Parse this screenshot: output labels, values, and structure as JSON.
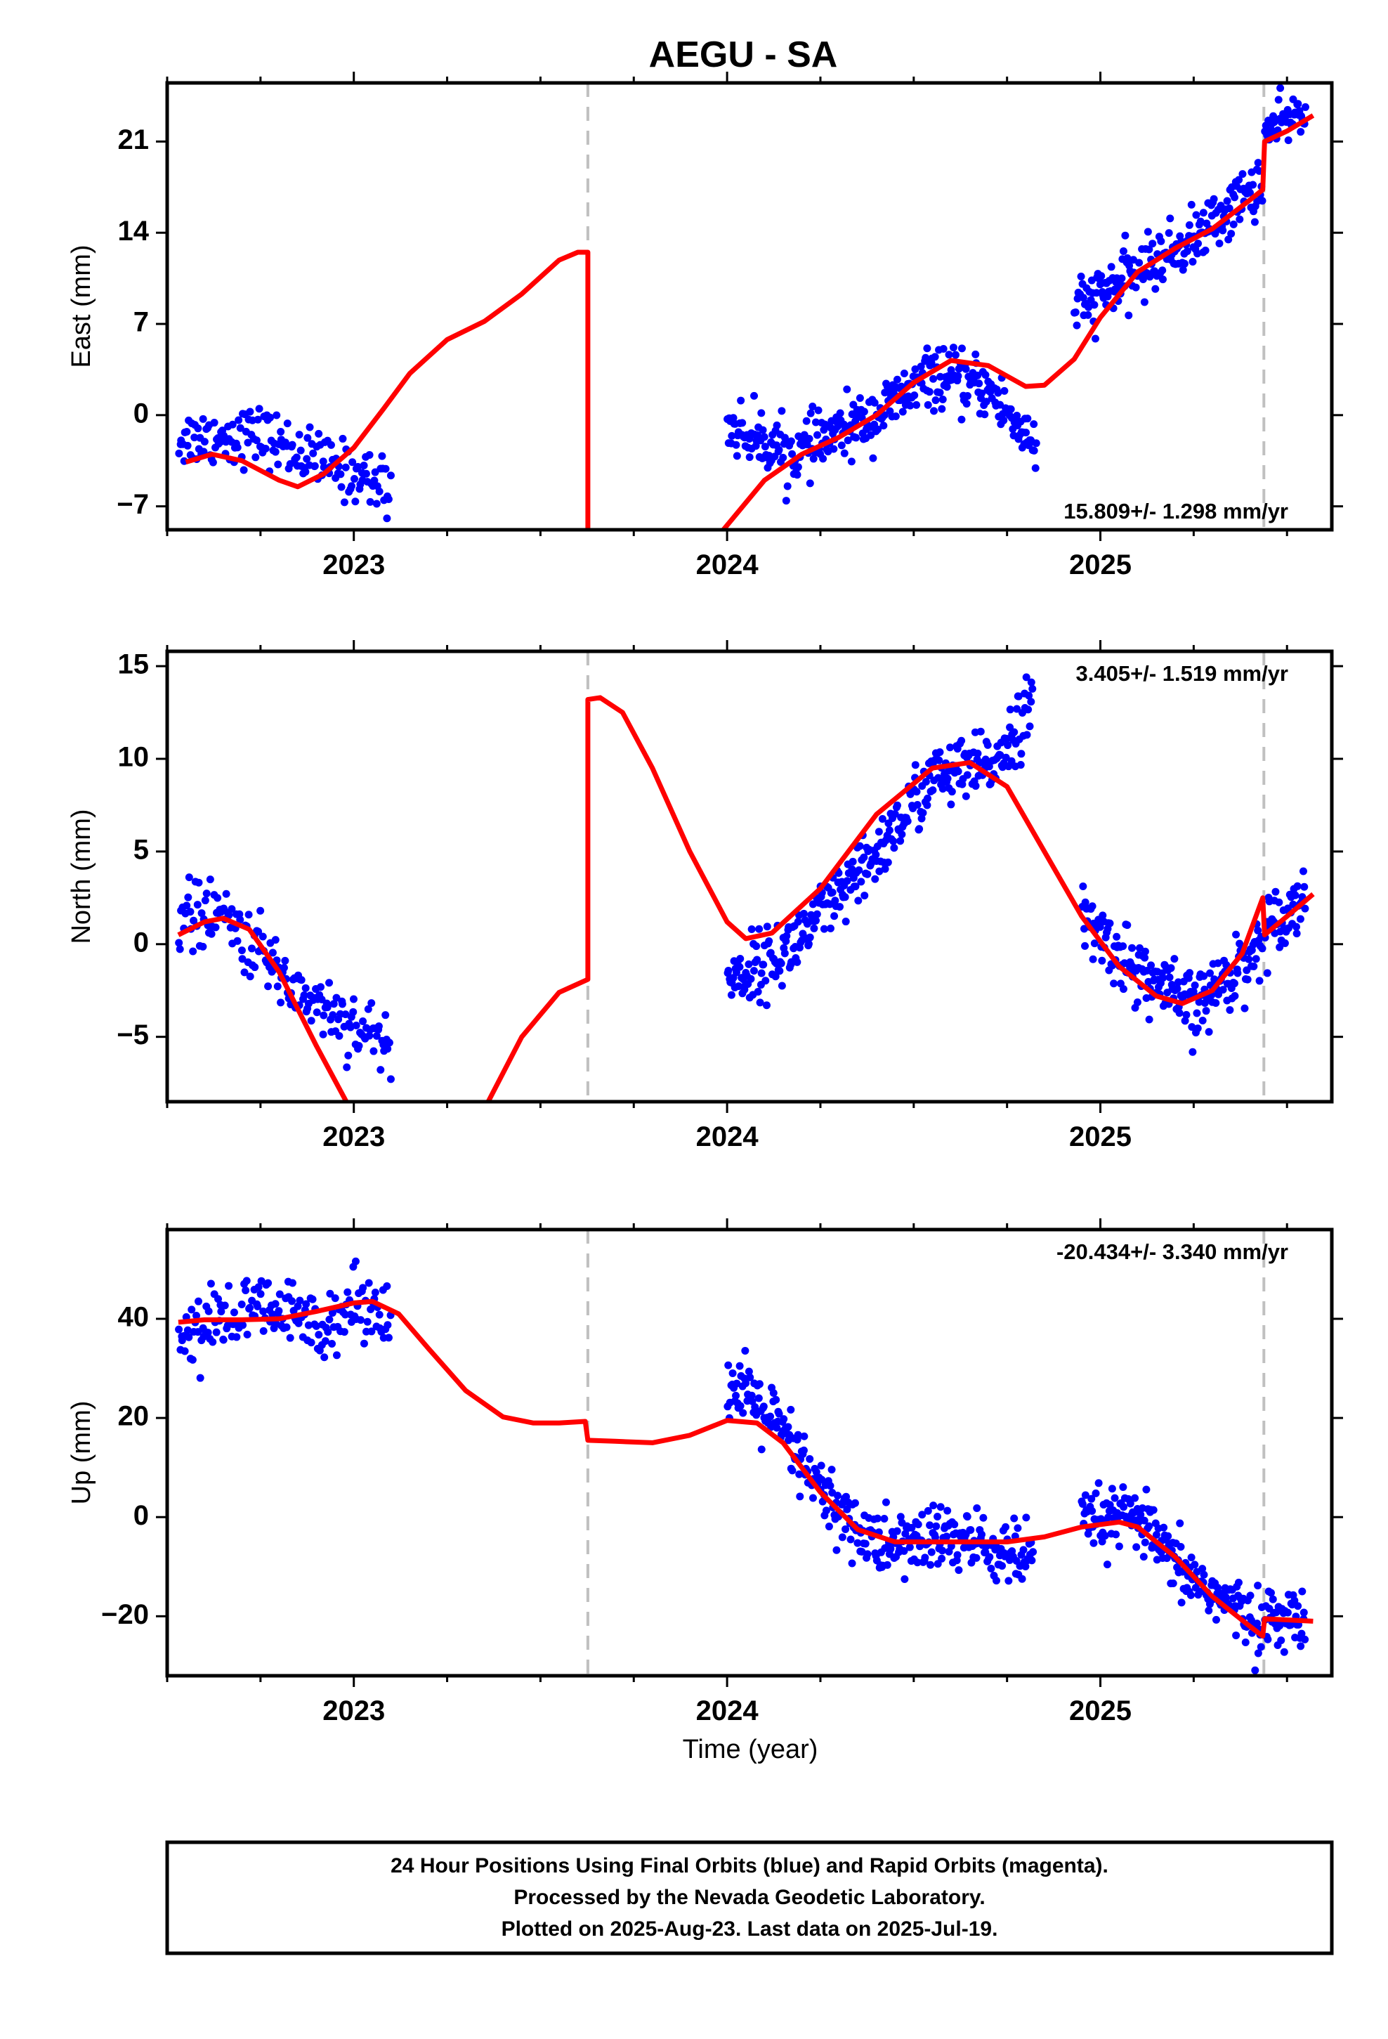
{
  "title": "AEGU - SA",
  "xlabel": "Time (year)",
  "colors": {
    "observations": "#0000ff",
    "model": "#ff0000",
    "step": "#c0c0c0"
  },
  "footer": {
    "line1": "24 Hour Positions Using Final Orbits (blue) and Rapid Orbits (magenta).",
    "line2": "Processed by the Nevada Geodetic Laboratory.",
    "line3": "Plotted on 2025-Aug-23. Last data on 2025-Jul-19."
  },
  "chart_data": [
    {
      "type": "scatter",
      "component": "east",
      "ylabel": "East (mm)",
      "rate_text": "15.809+/- 1.298 mm/yr",
      "xlim": [
        2022.5,
        2025.62
      ],
      "ylim": [
        -8.8,
        25.5
      ],
      "x_ticks": [
        2023,
        2024,
        2025
      ],
      "y_ticks": [
        -7,
        0,
        7,
        14,
        21
      ],
      "y_tick_labels": [
        "−7",
        "0",
        "7",
        "14",
        "21"
      ],
      "step_lines": [
        2023.627,
        2025.438
      ],
      "model": [
        [
          2022.55,
          -3.6
        ],
        [
          2022.62,
          -3.0
        ],
        [
          2022.7,
          -3.5
        ],
        [
          2022.8,
          -5.0
        ],
        [
          2022.85,
          -5.5
        ],
        [
          2022.92,
          -4.5
        ],
        [
          2023.0,
          -2.5
        ],
        [
          2023.08,
          0.5
        ],
        [
          2023.15,
          3.2
        ],
        [
          2023.25,
          5.8
        ],
        [
          2023.35,
          7.2
        ],
        [
          2023.45,
          9.3
        ],
        [
          2023.55,
          11.9
        ],
        [
          2023.6,
          12.5
        ],
        [
          2023.627,
          12.5
        ],
        [
          2023.627,
          -8.8
        ]
      ],
      "model2": [
        [
          2023.99,
          -8.8
        ],
        [
          2024.1,
          -5.0
        ],
        [
          2024.2,
          -3.0
        ],
        [
          2024.3,
          -1.7
        ],
        [
          2024.4,
          0.0
        ],
        [
          2024.5,
          2.5
        ],
        [
          2024.6,
          4.2
        ],
        [
          2024.7,
          3.8
        ],
        [
          2024.8,
          2.2
        ],
        [
          2024.85,
          2.3
        ],
        [
          2024.93,
          4.3
        ],
        [
          2025.0,
          7.5
        ],
        [
          2025.1,
          11.0
        ],
        [
          2025.2,
          12.8
        ],
        [
          2025.3,
          14.3
        ],
        [
          2025.4,
          16.5
        ],
        [
          2025.435,
          17.3
        ],
        [
          2025.44,
          21.0
        ],
        [
          2025.5,
          21.8
        ],
        [
          2025.57,
          23.0
        ]
      ],
      "observations": {
        "note_segments": "generated-approximation",
        "segments": [
          {
            "x_start": 2022.53,
            "x_end": 2023.1,
            "trend": [
              [
                2022.53,
                -1.8
              ],
              [
                2022.75,
                -1.5
              ],
              [
                2022.9,
                -3.5
              ],
              [
                2023.1,
                -5.5
              ]
            ],
            "n": 170,
            "noise": 1.1
          },
          {
            "x_start": 2024.0,
            "x_end": 2024.83,
            "trend": [
              [
                2024.0,
                -0.8
              ],
              [
                2024.18,
                -3.0
              ],
              [
                2024.4,
                0.0
              ],
              [
                2024.55,
                3.0
              ],
              [
                2024.7,
                2.0
              ],
              [
                2024.83,
                -2.5
              ]
            ],
            "n": 330,
            "noise": 1.1
          },
          {
            "x_start": 2024.93,
            "x_end": 2025.435,
            "trend": [
              [
                2024.93,
                8.0
              ],
              [
                2025.1,
                11.0
              ],
              [
                2025.25,
                13.5
              ],
              [
                2025.435,
                18.0
              ]
            ],
            "n": 200,
            "noise": 1.1
          },
          {
            "x_start": 2025.44,
            "x_end": 2025.55,
            "trend": [
              [
                2025.44,
                21.5
              ],
              [
                2025.55,
                23.5
              ]
            ],
            "n": 45,
            "noise": 0.9
          }
        ]
      }
    },
    {
      "type": "scatter",
      "component": "north",
      "ylabel": "North (mm)",
      "rate_text": "3.405+/- 1.519 mm/yr",
      "xlim": [
        2022.5,
        2025.62
      ],
      "ylim": [
        -8.5,
        15.8
      ],
      "x_ticks": [
        2023,
        2024,
        2025
      ],
      "y_ticks": [
        -5,
        0,
        5,
        10,
        15
      ],
      "y_tick_labels": [
        "−5",
        "0",
        "5",
        "10",
        "15"
      ],
      "step_lines": [
        2023.627,
        2025.438
      ],
      "model": [
        [
          2022.53,
          0.5
        ],
        [
          2022.6,
          1.2
        ],
        [
          2022.65,
          1.4
        ],
        [
          2022.72,
          0.8
        ],
        [
          2022.8,
          -1.5
        ],
        [
          2022.9,
          -5.5
        ],
        [
          2022.98,
          -8.5
        ]
      ],
      "model2": [
        [
          2023.36,
          -8.5
        ],
        [
          2023.45,
          -5.0
        ],
        [
          2023.55,
          -2.6
        ],
        [
          2023.627,
          -1.9
        ],
        [
          2023.627,
          13.2
        ],
        [
          2023.66,
          13.3
        ],
        [
          2023.72,
          12.5
        ],
        [
          2023.8,
          9.5
        ],
        [
          2023.9,
          5.0
        ],
        [
          2024.0,
          1.2
        ],
        [
          2024.05,
          0.3
        ],
        [
          2024.12,
          0.6
        ],
        [
          2024.25,
          3.0
        ],
        [
          2024.4,
          7.0
        ],
        [
          2024.55,
          9.5
        ],
        [
          2024.65,
          9.8
        ],
        [
          2024.75,
          8.5
        ],
        [
          2024.85,
          5.0
        ],
        [
          2024.95,
          1.5
        ],
        [
          2025.05,
          -1.2
        ],
        [
          2025.15,
          -2.8
        ],
        [
          2025.22,
          -3.2
        ],
        [
          2025.3,
          -2.5
        ],
        [
          2025.38,
          -0.5
        ],
        [
          2025.435,
          2.5
        ],
        [
          2025.44,
          0.5
        ],
        [
          2025.5,
          1.5
        ],
        [
          2025.57,
          2.7
        ]
      ],
      "observations": {
        "segments": [
          {
            "x_start": 2022.53,
            "x_end": 2023.1,
            "trend": [
              [
                2022.53,
                1.5
              ],
              [
                2022.65,
                1.5
              ],
              [
                2022.85,
                -2.5
              ],
              [
                2023.1,
                -5.5
              ]
            ],
            "n": 170,
            "noise": 0.9
          },
          {
            "x_start": 2024.0,
            "x_end": 2024.82,
            "trend": [
              [
                2024.0,
                -2.0
              ],
              [
                2024.15,
                -0.5
              ],
              [
                2024.35,
                3.5
              ],
              [
                2024.55,
                9.0
              ],
              [
                2024.7,
                9.5
              ],
              [
                2024.82,
                13.0
              ]
            ],
            "n": 330,
            "noise": 0.9
          },
          {
            "x_start": 2024.95,
            "x_end": 2025.435,
            "trend": [
              [
                2024.95,
                1.5
              ],
              [
                2025.1,
                -1.5
              ],
              [
                2025.25,
                -3.5
              ],
              [
                2025.435,
                0.0
              ]
            ],
            "n": 200,
            "noise": 0.9
          },
          {
            "x_start": 2025.44,
            "x_end": 2025.55,
            "trend": [
              [
                2025.44,
                1.0
              ],
              [
                2025.55,
                2.5
              ]
            ],
            "n": 45,
            "noise": 0.8
          }
        ]
      }
    },
    {
      "type": "scatter",
      "component": "up",
      "ylabel": "Up (mm)",
      "rate_text": "-20.434+/- 3.340 mm/yr",
      "xlim": [
        2022.5,
        2025.62
      ],
      "ylim": [
        -32,
        58
      ],
      "x_ticks": [
        2023,
        2024,
        2025
      ],
      "y_ticks": [
        -20,
        0,
        20,
        40
      ],
      "y_tick_labels": [
        "−20",
        "0",
        "20",
        "40"
      ],
      "step_lines": [
        2023.627,
        2025.438
      ],
      "model": [
        [
          2022.53,
          39.3
        ],
        [
          2022.6,
          39.8
        ],
        [
          2022.7,
          39.8
        ],
        [
          2022.8,
          40.0
        ],
        [
          2022.9,
          41.5
        ],
        [
          2023.0,
          43.2
        ],
        [
          2023.05,
          43.5
        ],
        [
          2023.12,
          41.0
        ],
        [
          2023.2,
          34.0
        ],
        [
          2023.3,
          25.5
        ],
        [
          2023.4,
          20.2
        ],
        [
          2023.48,
          19.0
        ],
        [
          2023.55,
          19.0
        ],
        [
          2023.62,
          19.3
        ],
        [
          2023.627,
          15.5
        ],
        [
          2023.7,
          15.3
        ],
        [
          2023.8,
          15.0
        ],
        [
          2023.9,
          16.5
        ],
        [
          2024.0,
          19.5
        ],
        [
          2024.08,
          19.0
        ],
        [
          2024.15,
          15.0
        ],
        [
          2024.25,
          5.0
        ],
        [
          2024.35,
          -2.5
        ],
        [
          2024.45,
          -5.0
        ],
        [
          2024.6,
          -5.0
        ],
        [
          2024.75,
          -5.0
        ],
        [
          2024.85,
          -4.0
        ],
        [
          2024.95,
          -2.0
        ],
        [
          2025.05,
          -1.0
        ],
        [
          2025.1,
          -2.0
        ],
        [
          2025.2,
          -8.0
        ],
        [
          2025.3,
          -16.0
        ],
        [
          2025.4,
          -22.0
        ],
        [
          2025.435,
          -24.0
        ],
        [
          2025.44,
          -20.5
        ],
        [
          2025.57,
          -21.0
        ]
      ],
      "observations": {
        "segments": [
          {
            "x_start": 2022.53,
            "x_end": 2023.1,
            "trend": [
              [
                2022.53,
                37.0
              ],
              [
                2022.75,
                42.0
              ],
              [
                2022.9,
                39.0
              ],
              [
                2023.05,
                44.0
              ],
              [
                2023.1,
                40.0
              ]
            ],
            "n": 170,
            "noise": 3.5
          },
          {
            "x_start": 2024.0,
            "x_end": 2024.82,
            "trend": [
              [
                2024.0,
                26.0
              ],
              [
                2024.1,
                22.0
              ],
              [
                2024.25,
                5.0
              ],
              [
                2024.4,
                -6.0
              ],
              [
                2024.6,
                -4.0
              ],
              [
                2024.82,
                -9.0
              ]
            ],
            "n": 330,
            "noise": 3.5
          },
          {
            "x_start": 2024.95,
            "x_end": 2025.435,
            "trend": [
              [
                2024.95,
                -1.0
              ],
              [
                2025.1,
                0.0
              ],
              [
                2025.2,
                -10.0
              ],
              [
                2025.435,
                -22.0
              ]
            ],
            "n": 200,
            "noise": 3.0
          },
          {
            "x_start": 2025.44,
            "x_end": 2025.55,
            "trend": [
              [
                2025.44,
                -20.0
              ],
              [
                2025.55,
                -21.0
              ]
            ],
            "n": 45,
            "noise": 2.8
          }
        ]
      }
    }
  ]
}
